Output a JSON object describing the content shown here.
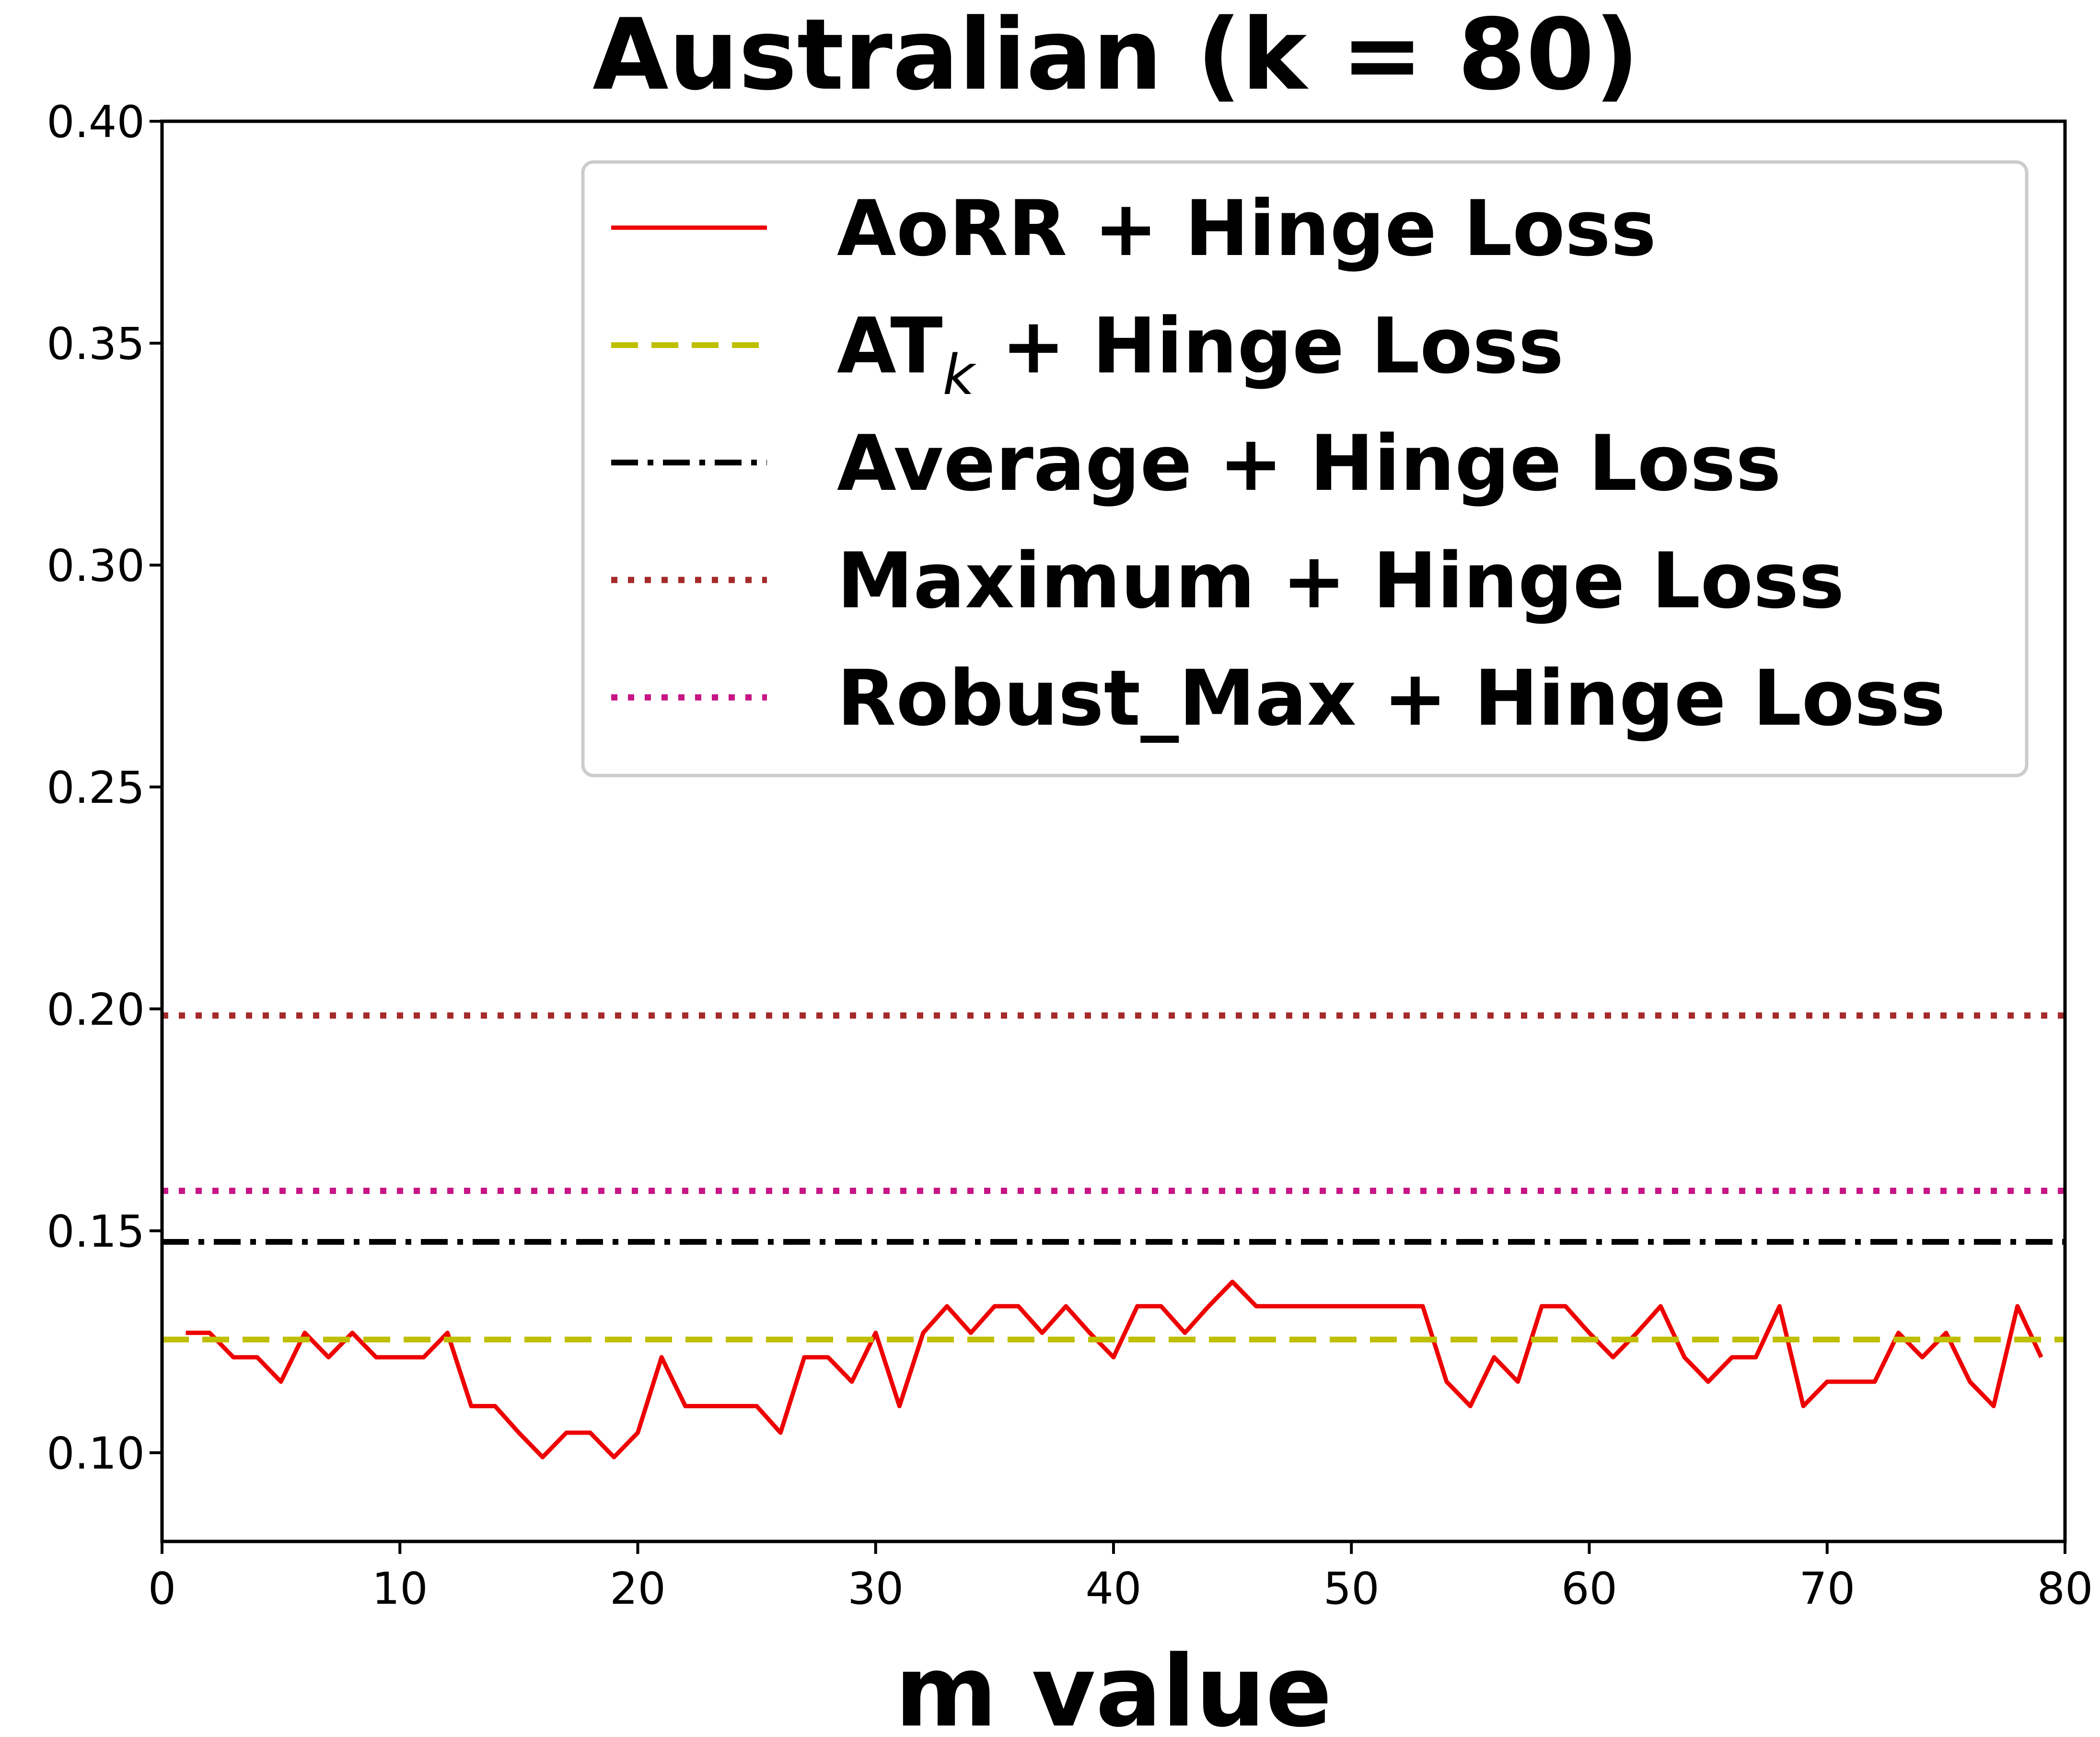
{
  "chart_data": {
    "type": "line",
    "title": "Australian (k = 80)",
    "xlabel": "m value",
    "ylabel": "",
    "xlim": [
      0,
      80
    ],
    "ylim": [
      0.08,
      0.4
    ],
    "x_ticks": [
      "0",
      "10",
      "20",
      "30",
      "40",
      "50",
      "60",
      "70",
      "80"
    ],
    "y_ticks": [
      "0.10",
      "0.15",
      "0.20",
      "0.25",
      "0.30",
      "0.35",
      "0.40"
    ],
    "grid": false,
    "legend_position": "top-right",
    "series": [
      {
        "name": "AoRR + Hinge Loss",
        "style": "solid",
        "color": "#ee0000",
        "x": [
          1,
          2,
          3,
          4,
          5,
          6,
          7,
          8,
          9,
          10,
          11,
          12,
          13,
          14,
          15,
          16,
          17,
          18,
          19,
          20,
          21,
          22,
          23,
          24,
          25,
          26,
          27,
          28,
          29,
          30,
          31,
          32,
          33,
          34,
          35,
          36,
          37,
          38,
          39,
          40,
          41,
          42,
          43,
          44,
          45,
          46,
          47,
          48,
          49,
          50,
          51,
          52,
          53,
          54,
          55,
          56,
          57,
          58,
          59,
          60,
          61,
          62,
          63,
          64,
          65,
          66,
          67,
          68,
          69,
          70,
          71,
          72,
          73,
          74,
          75,
          76,
          77,
          78,
          79
        ],
        "values": [
          0.127,
          0.127,
          0.1215,
          0.1215,
          0.116,
          0.127,
          0.1215,
          0.127,
          0.1215,
          0.1215,
          0.1215,
          0.127,
          0.1105,
          0.1105,
          0.1045,
          0.099,
          0.1045,
          0.1045,
          0.099,
          0.1045,
          0.1215,
          0.1105,
          0.1105,
          0.1105,
          0.1105,
          0.1045,
          0.1215,
          0.1215,
          0.116,
          0.127,
          0.1105,
          0.127,
          0.133,
          0.127,
          0.133,
          0.133,
          0.127,
          0.133,
          0.127,
          0.1215,
          0.133,
          0.133,
          0.127,
          0.133,
          0.1385,
          0.133,
          0.133,
          0.133,
          0.133,
          0.133,
          0.133,
          0.133,
          0.133,
          0.116,
          0.1105,
          0.1215,
          0.116,
          0.133,
          0.133,
          0.127,
          0.1215,
          0.127,
          0.133,
          0.1215,
          0.116,
          0.1215,
          0.1215,
          0.133,
          0.1105,
          0.116,
          0.116,
          0.116,
          0.127,
          0.1215,
          0.127,
          0.116,
          0.1105,
          0.133,
          0.1215
        ]
      },
      {
        "name": "AT",
        "name_subscript": "k",
        "name_suffix": " + Hinge Loss",
        "style": "dashed",
        "color": "#bfbf00",
        "x": [
          0,
          80
        ],
        "values": [
          0.1255,
          0.1255
        ]
      },
      {
        "name": "Average + Hinge Loss",
        "style": "dashdot",
        "color": "#000000",
        "x": [
          0,
          80
        ],
        "values": [
          0.1475,
          0.1475
        ]
      },
      {
        "name": "Maximum + Hinge Loss",
        "style": "dotted",
        "color": "#a52a2a",
        "x": [
          0,
          80
        ],
        "values": [
          0.1985,
          0.1985
        ]
      },
      {
        "name": "Robust_Max + Hinge Loss",
        "style": "dotted",
        "color": "#c71585",
        "x": [
          0,
          80
        ],
        "values": [
          0.159,
          0.159
        ]
      }
    ]
  }
}
